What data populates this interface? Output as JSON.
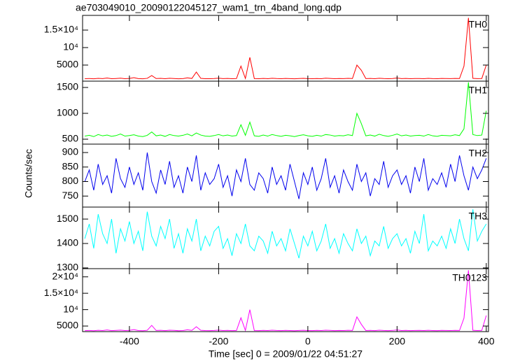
{
  "chart_data": [
    {
      "type": "line",
      "title": "ae703049010_20090122045127_wam1_trn_4band_long.qdp",
      "x": [
        -500,
        -490,
        -480,
        -470,
        -460,
        -450,
        -440,
        -430,
        -420,
        -410,
        -400,
        -390,
        -380,
        -370,
        -360,
        -350,
        -340,
        -330,
        -320,
        -310,
        -300,
        -290,
        -280,
        -270,
        -260,
        -250,
        -240,
        -230,
        -220,
        -210,
        -200,
        -190,
        -180,
        -170,
        -160,
        -150,
        -140,
        -130,
        -120,
        -110,
        -100,
        -90,
        -80,
        -70,
        -60,
        -50,
        -40,
        -30,
        -20,
        -10,
        0,
        10,
        20,
        30,
        40,
        50,
        60,
        70,
        80,
        90,
        100,
        110,
        120,
        130,
        140,
        150,
        160,
        170,
        180,
        190,
        200,
        210,
        220,
        230,
        240,
        250,
        260,
        270,
        280,
        290,
        300,
        310,
        320,
        330,
        340,
        350,
        360,
        370,
        380,
        390,
        400
      ],
      "series": [
        {
          "name": "TH0",
          "color": "#ff0000",
          "values": [
            1100,
            1150,
            1080,
            1200,
            1120,
            1300,
            1090,
            1160,
            1250,
            1110,
            1180,
            1400,
            1130,
            1070,
            1210,
            2000,
            1140,
            1190,
            1100,
            1230,
            1160,
            1080,
            1120,
            1350,
            1170,
            3000,
            1200,
            1110,
            1090,
            1150,
            1260,
            1120,
            1180,
            1100,
            1140,
            4700,
            1160,
            7200,
            1120,
            1090,
            1180,
            1110,
            1230,
            1140,
            1100,
            1170,
            1120,
            1080,
            1150,
            1200,
            1130,
            1090,
            1160,
            1110,
            1240,
            1180,
            1100,
            1140,
            1120,
            1190,
            1150,
            5000,
            3500,
            1130,
            1170,
            1100,
            1220,
            1140,
            1090,
            1160,
            1300,
            1120,
            1180,
            1100,
            1140,
            1160,
            1110,
            1200,
            1130,
            1090,
            1170,
            1150,
            1120,
            1180,
            1140,
            4700,
            18500,
            1200,
            1130,
            1160,
            5000
          ]
        }
      ],
      "xlim": [
        -505,
        405
      ],
      "ylim": [
        400,
        19200
      ],
      "yticks": [
        5000,
        {
          "value": 10000,
          "label": "10⁴"
        },
        {
          "value": 15000,
          "label": "1.5×10⁴"
        }
      ]
    },
    {
      "type": "line",
      "x": [
        -500,
        -490,
        -480,
        -470,
        -460,
        -450,
        -440,
        -430,
        -420,
        -410,
        -400,
        -390,
        -380,
        -370,
        -360,
        -350,
        -340,
        -330,
        -320,
        -310,
        -300,
        -290,
        -280,
        -270,
        -260,
        -250,
        -240,
        -230,
        -220,
        -210,
        -200,
        -190,
        -180,
        -170,
        -160,
        -150,
        -140,
        -130,
        -120,
        -110,
        -100,
        -90,
        -80,
        -70,
        -60,
        -50,
        -40,
        -30,
        -20,
        -10,
        0,
        10,
        20,
        30,
        40,
        50,
        60,
        70,
        80,
        90,
        100,
        110,
        120,
        130,
        140,
        150,
        160,
        170,
        180,
        190,
        200,
        210,
        220,
        230,
        240,
        250,
        260,
        270,
        280,
        290,
        300,
        310,
        320,
        330,
        340,
        350,
        360,
        370,
        380,
        390,
        400
      ],
      "series": [
        {
          "name": "TH1",
          "color": "#00ff00",
          "values": [
            560,
            575,
            550,
            590,
            565,
            580,
            555,
            570,
            600,
            560,
            570,
            585,
            560,
            550,
            575,
            640,
            565,
            580,
            555,
            590,
            570,
            560,
            575,
            600,
            565,
            620,
            580,
            560,
            555,
            570,
            590,
            565,
            580,
            560,
            570,
            780,
            575,
            830,
            565,
            555,
            580,
            560,
            590,
            570,
            555,
            575,
            565,
            550,
            570,
            585,
            565,
            555,
            575,
            560,
            590,
            580,
            560,
            570,
            565,
            585,
            570,
            1000,
            800,
            565,
            580,
            560,
            595,
            570,
            555,
            575,
            600,
            565,
            580,
            560,
            570,
            575,
            560,
            590,
            565,
            555,
            575,
            570,
            565,
            585,
            570,
            700,
            1600,
            590,
            570,
            580,
            1050
          ]
        }
      ],
      "xlim": [
        -505,
        405
      ],
      "ylim": [
        405,
        1622
      ],
      "yticks": [
        500,
        1000,
        1500
      ]
    },
    {
      "type": "line",
      "ylabel": "Counts/sec",
      "x": [
        -500,
        -490,
        -480,
        -470,
        -460,
        -450,
        -440,
        -430,
        -420,
        -410,
        -400,
        -390,
        -380,
        -370,
        -360,
        -350,
        -340,
        -330,
        -320,
        -310,
        -300,
        -290,
        -280,
        -270,
        -260,
        -250,
        -240,
        -230,
        -220,
        -210,
        -200,
        -190,
        -180,
        -170,
        -160,
        -150,
        -140,
        -130,
        -120,
        -110,
        -100,
        -90,
        -80,
        -70,
        -60,
        -50,
        -40,
        -30,
        -20,
        -10,
        0,
        10,
        20,
        30,
        40,
        50,
        60,
        70,
        80,
        90,
        100,
        110,
        120,
        130,
        140,
        150,
        160,
        170,
        180,
        190,
        200,
        210,
        220,
        230,
        240,
        250,
        260,
        270,
        280,
        290,
        300,
        310,
        320,
        330,
        340,
        350,
        360,
        370,
        380,
        390,
        400
      ],
      "series": [
        {
          "name": "TH2",
          "color": "#0000ee",
          "values": [
            800,
            840,
            770,
            860,
            790,
            820,
            760,
            880,
            810,
            780,
            850,
            790,
            830,
            770,
            900,
            800,
            760,
            840,
            790,
            870,
            780,
            820,
            760,
            850,
            800,
            890,
            770,
            830,
            790,
            810,
            860,
            780,
            820,
            750,
            840,
            800,
            880,
            790,
            770,
            830,
            810,
            760,
            850,
            790,
            820,
            770,
            860,
            800,
            740,
            830,
            790,
            850,
            770,
            810,
            880,
            780,
            820,
            760,
            840,
            800,
            770,
            860,
            800,
            830,
            750,
            810,
            790,
            870,
            780,
            820,
            840,
            790,
            820,
            760,
            850,
            800,
            880,
            770,
            810,
            790,
            830,
            780,
            860,
            800,
            890,
            820,
            770,
            850,
            810,
            840,
            880
          ]
        }
      ],
      "xlim": [
        -505,
        405
      ],
      "ylim": [
        712,
        929
      ],
      "yticks": [
        750,
        800,
        850,
        900
      ]
    },
    {
      "type": "line",
      "x": [
        -500,
        -490,
        -480,
        -470,
        -460,
        -450,
        -440,
        -430,
        -420,
        -410,
        -400,
        -390,
        -380,
        -370,
        -360,
        -350,
        -340,
        -330,
        -320,
        -310,
        -300,
        -290,
        -280,
        -270,
        -260,
        -250,
        -240,
        -230,
        -220,
        -210,
        -200,
        -190,
        -180,
        -170,
        -160,
        -150,
        -140,
        -130,
        -120,
        -110,
        -100,
        -90,
        -80,
        -70,
        -60,
        -50,
        -40,
        -30,
        -20,
        -10,
        0,
        10,
        20,
        30,
        40,
        50,
        60,
        70,
        80,
        90,
        100,
        110,
        120,
        130,
        140,
        150,
        160,
        170,
        180,
        190,
        200,
        210,
        220,
        230,
        240,
        250,
        260,
        270,
        280,
        290,
        300,
        310,
        320,
        330,
        340,
        350,
        360,
        370,
        380,
        390,
        400
      ],
      "series": [
        {
          "name": "TH3",
          "color": "#00ffff",
          "values": [
            1420,
            1480,
            1380,
            1520,
            1440,
            1400,
            1500,
            1360,
            1460,
            1410,
            1490,
            1400,
            1450,
            1370,
            1530,
            1430,
            1390,
            1470,
            1420,
            1500,
            1380,
            1440,
            1360,
            1460,
            1410,
            1500,
            1370,
            1430,
            1390,
            1450,
            1470,
            1380,
            1420,
            1350,
            1440,
            1400,
            1480,
            1390,
            1370,
            1430,
            1410,
            1360,
            1450,
            1390,
            1420,
            1370,
            1460,
            1400,
            1340,
            1430,
            1390,
            1450,
            1370,
            1410,
            1480,
            1380,
            1420,
            1360,
            1440,
            1400,
            1370,
            1460,
            1400,
            1430,
            1350,
            1410,
            1390,
            1470,
            1380,
            1420,
            1440,
            1390,
            1420,
            1360,
            1450,
            1400,
            1520,
            1370,
            1410,
            1390,
            1430,
            1380,
            1460,
            1400,
            1500,
            1420,
            1370,
            1540,
            1410,
            1450,
            1480
          ]
        }
      ],
      "xlim": [
        -505,
        405
      ],
      "ylim": [
        1297,
        1549
      ],
      "yticks": [
        1300,
        1400,
        1500
      ]
    },
    {
      "type": "line",
      "xlabel": "Time [sec] 0 = 2009/01/22 04:51:27",
      "x": [
        -500,
        -490,
        -480,
        -470,
        -460,
        -450,
        -440,
        -430,
        -420,
        -410,
        -400,
        -390,
        -380,
        -370,
        -360,
        -350,
        -340,
        -330,
        -320,
        -310,
        -300,
        -290,
        -280,
        -270,
        -260,
        -250,
        -240,
        -230,
        -220,
        -210,
        -200,
        -190,
        -180,
        -170,
        -160,
        -150,
        -140,
        -130,
        -120,
        -110,
        -100,
        -90,
        -80,
        -70,
        -60,
        -50,
        -40,
        -30,
        -20,
        -10,
        0,
        10,
        20,
        30,
        40,
        50,
        60,
        70,
        80,
        90,
        100,
        110,
        120,
        130,
        140,
        150,
        160,
        170,
        180,
        190,
        200,
        210,
        220,
        230,
        240,
        250,
        260,
        270,
        280,
        290,
        300,
        310,
        320,
        330,
        340,
        350,
        360,
        370,
        380,
        390,
        400
      ],
      "series": [
        {
          "name": "TH0123",
          "color": "#ff00ff",
          "values": [
            3600,
            3650,
            3580,
            3700,
            3620,
            3800,
            3590,
            3660,
            3750,
            3610,
            3680,
            3900,
            3630,
            3570,
            3710,
            5200,
            3640,
            3690,
            3600,
            3730,
            3660,
            3580,
            3620,
            3850,
            3670,
            4800,
            3700,
            3610,
            3590,
            3650,
            3760,
            3620,
            3680,
            3600,
            3640,
            7500,
            3660,
            10000,
            3620,
            3590,
            3680,
            3610,
            3730,
            3640,
            3600,
            3670,
            3620,
            3580,
            3650,
            3700,
            3630,
            3590,
            3660,
            3610,
            3740,
            3680,
            3600,
            3640,
            3620,
            3690,
            3650,
            7800,
            5500,
            3630,
            3670,
            3600,
            3720,
            3640,
            3590,
            3660,
            3800,
            3620,
            3680,
            3600,
            3640,
            3660,
            3610,
            3700,
            3630,
            3590,
            3670,
            3650,
            3620,
            3680,
            3640,
            7400,
            22000,
            3700,
            3630,
            3660,
            8200
          ]
        }
      ],
      "xlim": [
        -505,
        405
      ],
      "ylim": [
        3300,
        22500
      ],
      "yticks": [
        5000,
        {
          "value": 10000,
          "label": "10⁴"
        },
        {
          "value": 15000,
          "label": "1.5×10⁴"
        },
        {
          "value": 20000,
          "label": "2×10⁴"
        }
      ],
      "xticks": [
        -400,
        -200,
        0,
        200,
        400
      ]
    }
  ]
}
